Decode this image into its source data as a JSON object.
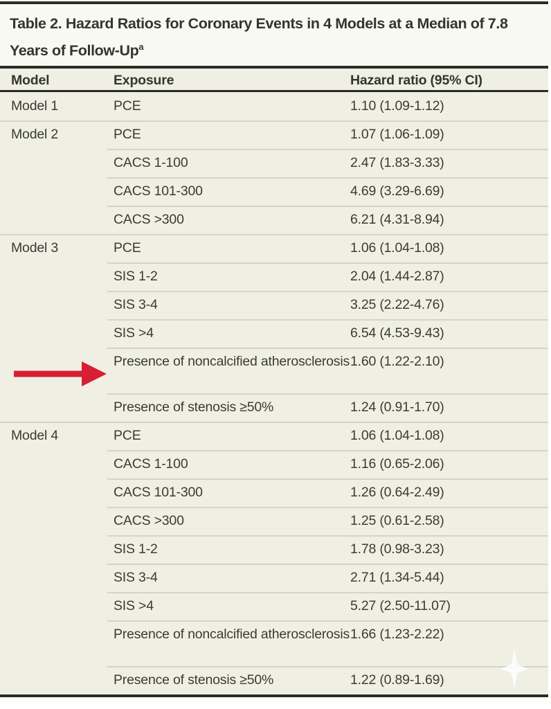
{
  "table": {
    "title": "Table 2. Hazard Ratios for Coronary Events in 4 Models at a Median of 7.8 Years of Follow-Up",
    "title_footnote_marker": "a",
    "columns": [
      "Model",
      "Exposure",
      "Hazard ratio (95% CI)"
    ],
    "groups": [
      {
        "model": "Model 1",
        "rows": [
          {
            "exposure": "PCE",
            "hazard_ratio": "1.10 (1.09-1.12)"
          }
        ]
      },
      {
        "model": "Model 2",
        "rows": [
          {
            "exposure": "PCE",
            "hazard_ratio": "1.07 (1.06-1.09)"
          },
          {
            "exposure": "CACS 1-100",
            "hazard_ratio": "2.47 (1.83-3.33)"
          },
          {
            "exposure": "CACS 101-300",
            "hazard_ratio": "4.69 (3.29-6.69)"
          },
          {
            "exposure": "CACS >300",
            "hazard_ratio": "6.21 (4.31-8.94)"
          }
        ]
      },
      {
        "model": "Model 3",
        "rows": [
          {
            "exposure": "PCE",
            "hazard_ratio": "1.06 (1.04-1.08)"
          },
          {
            "exposure": "SIS 1-2",
            "hazard_ratio": "2.04 (1.44-2.87)"
          },
          {
            "exposure": "SIS 3-4",
            "hazard_ratio": "3.25 (2.22-4.76)"
          },
          {
            "exposure": "SIS >4",
            "hazard_ratio": "6.54 (4.53-9.43)"
          },
          {
            "exposure": "Presence of noncalcified atherosclerosis",
            "hazard_ratio": "1.60 (1.22-2.10)",
            "highlighted": true
          },
          {
            "exposure": "Presence of stenosis ≥50%",
            "hazard_ratio": "1.24 (0.91-1.70)"
          }
        ]
      },
      {
        "model": "Model 4",
        "rows": [
          {
            "exposure": "PCE",
            "hazard_ratio": "1.06 (1.04-1.08)"
          },
          {
            "exposure": "CACS 1-100",
            "hazard_ratio": "1.16 (0.65-2.06)"
          },
          {
            "exposure": "CACS 101-300",
            "hazard_ratio": "1.26 (0.64-2.49)"
          },
          {
            "exposure": "CACS >300",
            "hazard_ratio": "1.25 (0.61-2.58)"
          },
          {
            "exposure": "SIS 1-2",
            "hazard_ratio": "1.78 (0.98-3.23)"
          },
          {
            "exposure": "SIS 3-4",
            "hazard_ratio": "2.71 (1.34-5.44)"
          },
          {
            "exposure": "SIS >4",
            "hazard_ratio": "5.27 (2.50-11.07)"
          },
          {
            "exposure": "Presence of noncalcified atherosclerosis",
            "hazard_ratio": "1.66 (1.23-2.22)"
          },
          {
            "exposure": "Presence of stenosis ≥50%",
            "hazard_ratio": "1.22 (0.89-1.69)"
          }
        ]
      }
    ]
  },
  "annotations": {
    "arrow": {
      "shape": "right-arrow",
      "color": "#d81e33",
      "points_to_model": "Model 3",
      "points_to_exposure": "Presence of noncalcified atherosclerosis"
    },
    "sparkle_watermark": {
      "shape": "four-pointed-star",
      "color": "#ffffff"
    }
  },
  "colors": {
    "table_background": "#eff0e3",
    "title_background": "#f9f9f4",
    "rule_dark": "#2c2c26",
    "row_divider": "#d4d5c5",
    "text": "#3b3b33",
    "accent_red": "#d81e33"
  }
}
